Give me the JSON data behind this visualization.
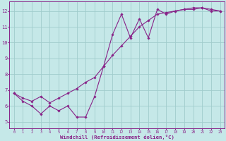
{
  "xlabel": "Windchill (Refroidissement éolien,°C)",
  "bg_color": "#c5e8e8",
  "line_color": "#882288",
  "grid_color": "#a0cccc",
  "xlim": [
    -0.5,
    23.5
  ],
  "ylim": [
    4.6,
    12.6
  ],
  "xticks": [
    0,
    1,
    2,
    3,
    4,
    5,
    6,
    7,
    8,
    9,
    10,
    11,
    12,
    13,
    14,
    15,
    16,
    17,
    18,
    19,
    20,
    21,
    22,
    23
  ],
  "yticks": [
    5,
    6,
    7,
    8,
    9,
    10,
    11,
    12
  ],
  "curve1_x": [
    0,
    1,
    2,
    3,
    4,
    5,
    6,
    7,
    8,
    9,
    10,
    11,
    12,
    13,
    14,
    15,
    16,
    17,
    18,
    19,
    20,
    21,
    22,
    23
  ],
  "curve1_y": [
    6.8,
    6.3,
    6.0,
    5.5,
    6.0,
    5.7,
    6.0,
    5.3,
    5.3,
    6.6,
    8.5,
    10.5,
    11.8,
    10.3,
    11.5,
    10.3,
    12.1,
    11.8,
    12.0,
    12.1,
    12.2,
    12.2,
    12.0,
    12.0
  ],
  "curve2_x": [
    0,
    1,
    2,
    3,
    4,
    5,
    6,
    7,
    8,
    9,
    10,
    11,
    12,
    13,
    14,
    15,
    16,
    17,
    18,
    19,
    20,
    21,
    22,
    23
  ],
  "curve2_y": [
    6.8,
    6.5,
    6.3,
    6.6,
    6.2,
    6.5,
    6.8,
    7.1,
    7.5,
    7.8,
    8.5,
    9.2,
    9.8,
    10.4,
    11.0,
    11.4,
    11.8,
    11.9,
    12.0,
    12.1,
    12.1,
    12.2,
    12.1,
    12.0
  ]
}
